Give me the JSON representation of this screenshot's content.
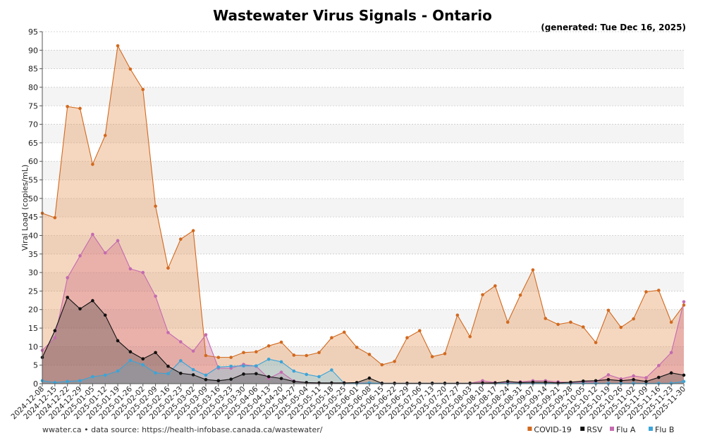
{
  "chart_data": {
    "type": "area",
    "title": "Wastewater Virus Signals - Ontario",
    "subtitle": "(generated: Tue Dec 16, 2025)",
    "xlabel": "",
    "ylabel": "Viral Load (copies/mL)",
    "ylim": [
      0,
      95
    ],
    "yticks": [
      0,
      5,
      10,
      15,
      20,
      25,
      30,
      35,
      40,
      45,
      50,
      55,
      60,
      65,
      70,
      75,
      80,
      85,
      90,
      95
    ],
    "grid": true,
    "legend_position": "bottom-right",
    "footer": "wwater.ca • data source: https://health-infobase.canada.ca/wastewater/",
    "x_labels": [
      "2024-12-08",
      "2024-12-15",
      "2024-12-22",
      "2024-12-29",
      "2025-01-05",
      "2025-01-12",
      "2025-01-19",
      "2025-01-26",
      "2025-02-02",
      "2025-02-09",
      "2025-02-16",
      "2025-02-23",
      "2025-03-02",
      "2025-03-09",
      "2025-03-16",
      "2025-03-23",
      "2025-03-30",
      "2025-04-06",
      "2025-04-13",
      "2025-04-20",
      "2025-04-27",
      "2025-05-04",
      "2025-05-11",
      "2025-05-18",
      "2025-05-25",
      "2025-06-01",
      "2025-06-08",
      "2025-06-15",
      "2025-06-22",
      "2025-06-29",
      "2025-07-06",
      "2025-07-13",
      "2025-07-20",
      "2025-07-27",
      "2025-08-03",
      "2025-08-10",
      "2025-08-17",
      "2025-08-24",
      "2025-08-31",
      "2025-09-07",
      "2025-09-14",
      "2025-09-21",
      "2025-09-28",
      "2025-10-05",
      "2025-10-12",
      "2025-10-19",
      "2025-10-26",
      "2025-11-02",
      "2025-11-09",
      "2025-11-16",
      "2025-11-23",
      "2025-11-30"
    ],
    "series": [
      {
        "name": "COVID-19",
        "color": "#d2691e",
        "fill": "rgba(230,150,90,0.38)",
        "values": [
          46,
          44.8,
          74.8,
          74.3,
          59.2,
          67,
          91.2,
          84.9,
          79.4,
          47.9,
          31.2,
          39,
          41.3,
          7.6,
          7.1,
          7.1,
          8.4,
          8.6,
          10.2,
          11.2,
          7.7,
          7.6,
          8.4,
          12.4,
          13.9,
          9.8,
          7.9,
          5.1,
          6.0,
          12.4,
          14.3,
          7.3,
          8.1,
          18.5,
          12.7,
          24,
          26.4,
          16.6,
          23.9,
          30.7,
          17.6,
          16,
          16.6,
          15.3,
          11.1,
          19.8,
          15.2,
          17.5,
          24.8,
          25.2,
          16.6,
          21.2
        ]
      },
      {
        "name": "Flu A",
        "color": "#c46bb0",
        "fill": "rgba(205,80,120,0.28)",
        "values": [
          9,
          12.4,
          28.6,
          34.5,
          40.3,
          35.3,
          38.6,
          31,
          30,
          23.6,
          13.8,
          11.3,
          8.8,
          13.2,
          4.2,
          4.2,
          5.2,
          4.7,
          1.4,
          3.1,
          0.7,
          0.3,
          0.2,
          0.2,
          0.2,
          0.2,
          0.2,
          0.1,
          0.1,
          0.1,
          0.1,
          0.1,
          0.1,
          0.1,
          0.1,
          0.8,
          0.3,
          0.3,
          0.5,
          0.8,
          0.8,
          0.5,
          0.3,
          0.5,
          0.5,
          2.4,
          1.3,
          2.1,
          1.6,
          4.9,
          8.4,
          22.1
        ]
      },
      {
        "name": "Flu B",
        "color": "#3ba4d8",
        "fill": "rgba(120,200,225,0.38)",
        "values": [
          0.8,
          0.3,
          0.6,
          0.8,
          1.9,
          2.3,
          3.4,
          6.3,
          5.1,
          2.9,
          2.7,
          6.2,
          3.8,
          2.3,
          4.5,
          4.7,
          4.8,
          4.8,
          6.6,
          5.9,
          3.4,
          2.5,
          1.9,
          3.7,
          0.1,
          0.1,
          0.2,
          0.1,
          0.1,
          0.1,
          0.1,
          0.1,
          0.1,
          0.1,
          0.1,
          0.1,
          0.1,
          0.1,
          0.1,
          0.1,
          0.1,
          0.1,
          0.1,
          0.1,
          0.1,
          0.1,
          0.1,
          0.1,
          0.1,
          0.1,
          0.1,
          0.6
        ]
      },
      {
        "name": "RSV",
        "color": "#111111",
        "fill": "rgba(60,60,60,0.30)",
        "values": [
          7.1,
          14.3,
          23.3,
          20.2,
          22.4,
          18.5,
          11.6,
          8.6,
          6.7,
          8.4,
          4.7,
          2.8,
          2.4,
          1.1,
          0.8,
          1.2,
          2.6,
          2.7,
          1.9,
          1.4,
          0.6,
          0.3,
          0.2,
          0.2,
          0.2,
          0.3,
          1.5,
          0.1,
          0.1,
          0.1,
          0.1,
          0.1,
          0.1,
          0.1,
          0.1,
          0.2,
          0.2,
          0.6,
          0.3,
          0.4,
          0.4,
          0.2,
          0.4,
          0.7,
          0.8,
          1.1,
          0.8,
          1.1,
          0.6,
          1.7,
          2.9,
          2.3
        ]
      }
    ],
    "legend": [
      {
        "name": "COVID-19",
        "color": "#d2691e"
      },
      {
        "name": "RSV",
        "color": "#111111"
      },
      {
        "name": "Flu A",
        "color": "#c46bb0"
      },
      {
        "name": "Flu B",
        "color": "#3ba4d8"
      }
    ]
  }
}
